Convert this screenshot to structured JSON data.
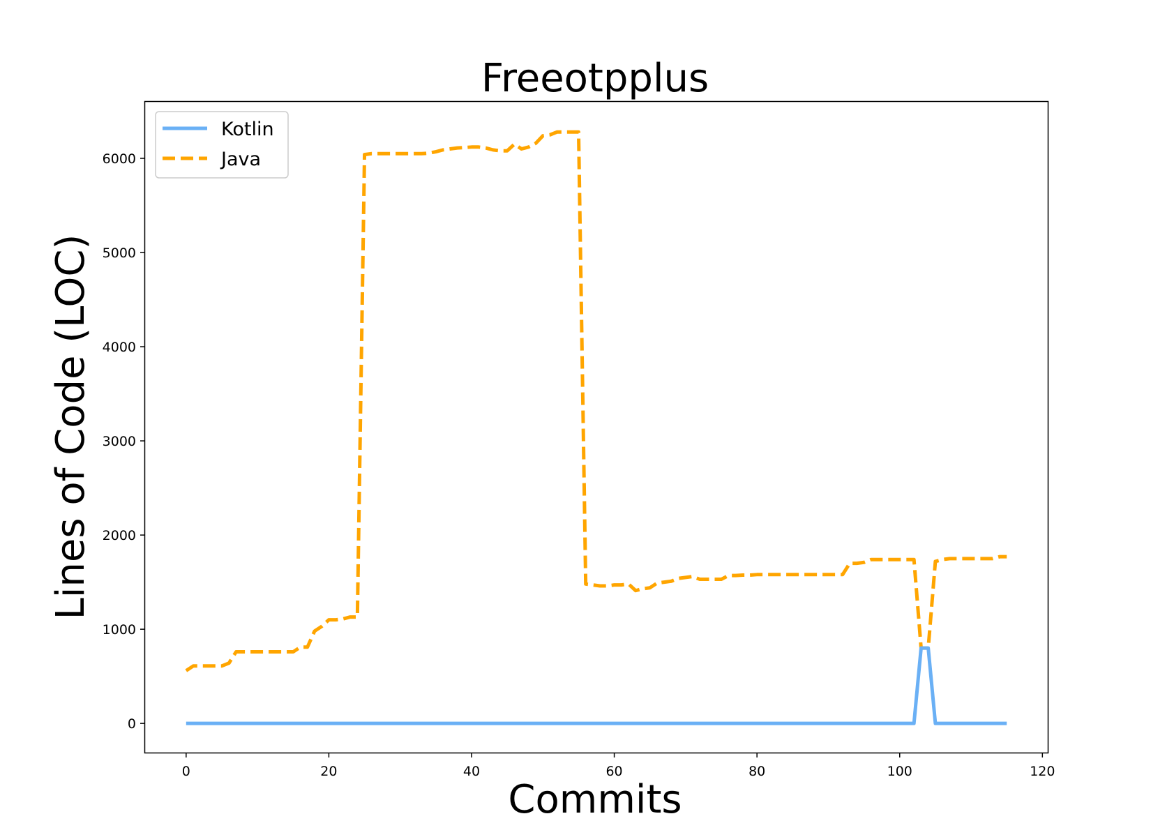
{
  "chart_data": {
    "type": "line",
    "title": "Freeotpplus",
    "xlabel": "Commits",
    "ylabel": "Lines of Code (LOC)",
    "xlim": [
      -5.75,
      120.75
    ],
    "ylim": [
      -310,
      6600
    ],
    "xticks": [
      0,
      20,
      40,
      60,
      80,
      100,
      120
    ],
    "yticks": [
      0,
      1000,
      2000,
      3000,
      4000,
      5000,
      6000
    ],
    "grid": false,
    "legend_position": "top-left",
    "series": [
      {
        "name": "Kotlin",
        "color": "#6ab0f5",
        "style": "solid",
        "x": [
          0,
          102,
          103,
          104,
          105,
          115
        ],
        "y": [
          0,
          0,
          800,
          800,
          0,
          0
        ]
      },
      {
        "name": "Java",
        "color": "#ffa500",
        "style": "dashed",
        "x": [
          0,
          1,
          2,
          3,
          4,
          5,
          6,
          7,
          8,
          9,
          10,
          11,
          12,
          13,
          14,
          15,
          16,
          17,
          18,
          19,
          20,
          21,
          22,
          23,
          24,
          25,
          26,
          27,
          28,
          29,
          30,
          31,
          32,
          33,
          34,
          35,
          36,
          37,
          38,
          39,
          40,
          41,
          42,
          43,
          44,
          45,
          46,
          47,
          48,
          49,
          50,
          51,
          52,
          53,
          54,
          55,
          56,
          57,
          58,
          59,
          60,
          61,
          62,
          63,
          64,
          65,
          66,
          67,
          68,
          69,
          70,
          71,
          72,
          73,
          74,
          75,
          76,
          77,
          78,
          79,
          80,
          81,
          82,
          83,
          84,
          85,
          86,
          87,
          88,
          89,
          90,
          91,
          92,
          93,
          94,
          95,
          96,
          97,
          98,
          99,
          100,
          101,
          102,
          103,
          104,
          105,
          106,
          107,
          108,
          109,
          110,
          111,
          112,
          113,
          114,
          115
        ],
        "y": [
          560,
          610,
          610,
          610,
          610,
          610,
          640,
          760,
          760,
          760,
          760,
          760,
          760,
          760,
          760,
          760,
          810,
          810,
          980,
          1030,
          1100,
          1100,
          1110,
          1130,
          1130,
          6040,
          6050,
          6050,
          6050,
          6050,
          6050,
          6050,
          6050,
          6050,
          6055,
          6070,
          6090,
          6100,
          6110,
          6115,
          6120,
          6120,
          6110,
          6090,
          6080,
          6080,
          6150,
          6100,
          6120,
          6160,
          6240,
          6250,
          6280,
          6280,
          6280,
          6280,
          1480,
          1470,
          1460,
          1460,
          1470,
          1470,
          1480,
          1410,
          1430,
          1440,
          1490,
          1500,
          1510,
          1540,
          1550,
          1560,
          1530,
          1530,
          1530,
          1530,
          1570,
          1570,
          1575,
          1575,
          1580,
          1580,
          1580,
          1580,
          1580,
          1580,
          1580,
          1580,
          1580,
          1580,
          1580,
          1580,
          1580,
          1700,
          1700,
          1710,
          1740,
          1740,
          1740,
          1740,
          1740,
          1740,
          1740,
          800,
          800,
          1720,
          1740,
          1750,
          1750,
          1750,
          1750,
          1750,
          1750,
          1750,
          1770,
          1770
        ]
      }
    ]
  }
}
